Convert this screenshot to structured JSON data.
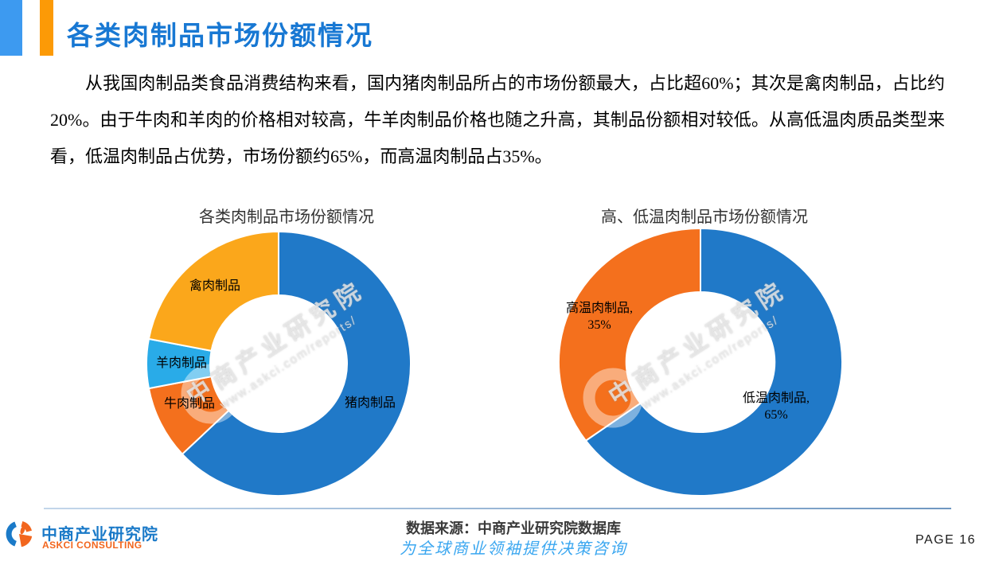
{
  "header": {
    "title": "各类肉制品市场份额情况"
  },
  "body": {
    "paragraph": "从我国肉制品类食品消费结构来看，国内猪肉制品所占的市场份额最大，占比超60%；其次是禽肉制品，占比约20%。由于牛肉和羊肉的价格相对较高，牛羊肉制品价格也随之升高，其制品份额相对较低。从高低温肉质品类型来看，低温肉制品占优势，市场份额约65%，而高温肉制品占35%。"
  },
  "watermark": {
    "line1": "中商产业研究院",
    "line2": "www.askci.com/reports/"
  },
  "chart_data": [
    {
      "type": "pie",
      "subtype": "donut",
      "title": "各类肉制品市场份额情况",
      "direction": "clockwise",
      "start_angle_deg": 0,
      "unit": "%",
      "legend_position": "none",
      "slices": [
        {
          "label": "猪肉制品",
          "value": 63,
          "color": "#2079C8"
        },
        {
          "label": "牛肉制品",
          "value": 9,
          "color": "#F4701D"
        },
        {
          "label": "羊肉制品",
          "value": 6,
          "color": "#29ABE8"
        },
        {
          "label": "禽肉制品",
          "value": 22,
          "color": "#FBA71B"
        }
      ]
    },
    {
      "type": "pie",
      "subtype": "donut",
      "title": "高、低温肉制品市场份额情况",
      "direction": "clockwise",
      "start_angle_deg": 0,
      "unit": "%",
      "legend_position": "none",
      "slices": [
        {
          "label": "低温肉制品,",
          "value": 65,
          "value_label": "65%",
          "color": "#2079C8"
        },
        {
          "label": "高温肉制品,",
          "value": 35,
          "value_label": "35%",
          "color": "#F4701D"
        }
      ]
    }
  ],
  "footer": {
    "logo": {
      "name_cn": "中商产业研究院",
      "name_en": "ASKCI CONSULTING"
    },
    "source": "数据来源：中商产业研究院数据库",
    "slogan": "为全球商业领袖提供决策咨询",
    "page": "PAGE 16"
  },
  "colors": {
    "title_blue": "#1878D3",
    "accent_blue": "#3D9AF0",
    "accent_orange": "#FC9A06",
    "pie_blue": "#2079C8",
    "pie_orange": "#F4701D",
    "pie_light_blue": "#29ABE8",
    "pie_amber": "#FBA71B",
    "logo_blue": "#1B7AC8",
    "logo_orange": "#F2661E",
    "slogan_blue": "#3BA7F0"
  }
}
